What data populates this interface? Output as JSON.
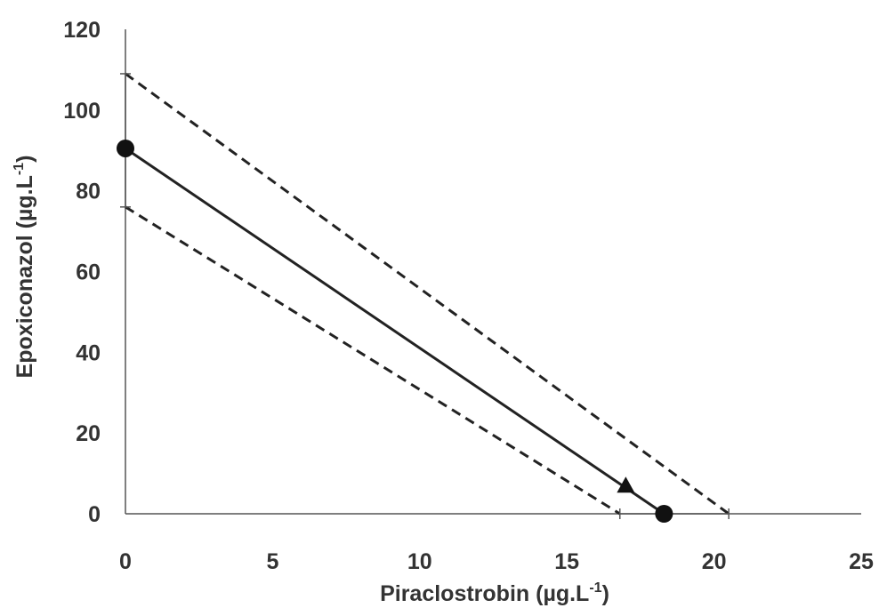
{
  "chart_data": {
    "type": "line",
    "xlabel": "Piraclostrobin (µg.L",
    "xlabel_sup": "-1",
    "xlabel_end": ")",
    "ylabel": "Epoxiconazol (µg.L",
    "ylabel_sup": "-1",
    "ylabel_end": ")",
    "xlim": [
      0,
      25
    ],
    "ylim": [
      0,
      120
    ],
    "xticks": [
      "0",
      "5",
      "10",
      "15",
      "20",
      "25"
    ],
    "yticks": [
      "0",
      "20",
      "40",
      "60",
      "80",
      "100",
      "120"
    ],
    "grid": false,
    "legend": "none",
    "series": [
      {
        "style": "solid",
        "points": [
          [
            0,
            90.5
          ],
          [
            18.3,
            0
          ]
        ]
      },
      {
        "style": "dashed",
        "points": [
          [
            0,
            109
          ],
          [
            20.5,
            0
          ]
        ]
      },
      {
        "style": "dashed",
        "points": [
          [
            0,
            76
          ],
          [
            16.8,
            0
          ]
        ]
      }
    ],
    "markers": [
      {
        "shape": "circle",
        "x": 0,
        "y": 90.5
      },
      {
        "shape": "circle",
        "x": 18.3,
        "y": 0
      },
      {
        "shape": "triangle",
        "x": 17,
        "y": 7
      }
    ],
    "error_bars": [
      {
        "axis": "y",
        "x": 0,
        "low": 76,
        "high": 109
      },
      {
        "axis": "x",
        "y": 0,
        "low": 16.8,
        "high": 20.5
      }
    ],
    "colors": {
      "line": "#222222",
      "text": "#333333",
      "axis": "#555555"
    }
  }
}
